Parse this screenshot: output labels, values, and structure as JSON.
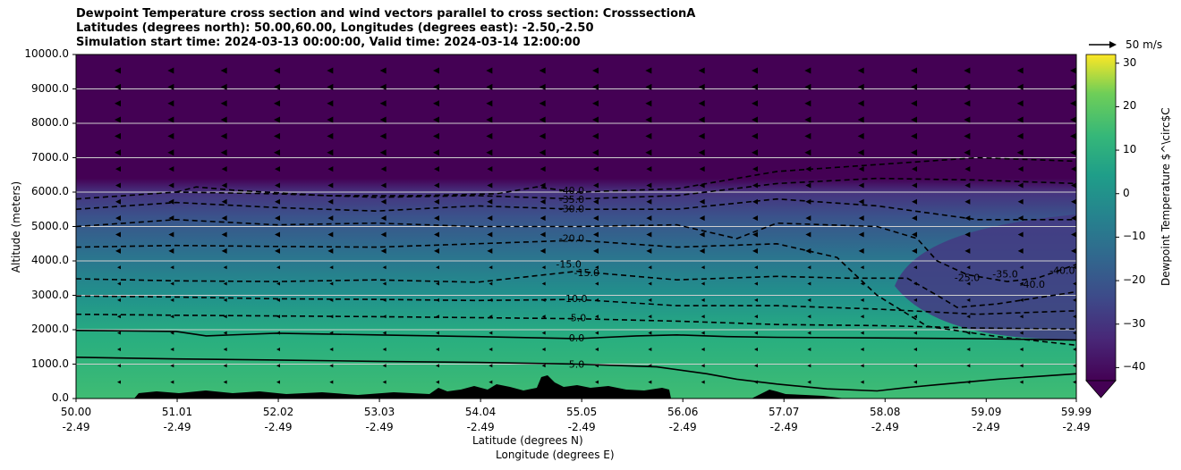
{
  "chart_data": {
    "type": "contour",
    "title": [
      "Dewpoint Temperature cross section and wind vectors parallel to cross section: CrosssectionA",
      "Latitudes (degrees north): 50.00,60.00, Longitudes (degrees east): -2.50,-2.50",
      "Simulation start time: 2024-03-13 00:00:00, Valid time: 2024-03-14 12:00:00"
    ],
    "ylabel": "Altitude (meters)",
    "xlabel": "Latitude (degrees N)",
    "xlabel2": "Longitude (degrees E)",
    "ylim": [
      0,
      10000
    ],
    "yticks": [
      "0.0",
      "1000.0",
      "2000.0",
      "3000.0",
      "4000.0",
      "5000.0",
      "6000.0",
      "7000.0",
      "8000.0",
      "9000.0",
      "10000.0"
    ],
    "xticks": [
      {
        "lat": "50.00",
        "lon": "-2.49"
      },
      {
        "lat": "51.01",
        "lon": "-2.49"
      },
      {
        "lat": "52.02",
        "lon": "-2.49"
      },
      {
        "lat": "53.03",
        "lon": "-2.49"
      },
      {
        "lat": "54.04",
        "lon": "-2.49"
      },
      {
        "lat": "55.05",
        "lon": "-2.49"
      },
      {
        "lat": "56.06",
        "lon": "-2.49"
      },
      {
        "lat": "57.07",
        "lon": "-2.49"
      },
      {
        "lat": "58.08",
        "lon": "-2.49"
      },
      {
        "lat": "59.09",
        "lon": "-2.49"
      },
      {
        "lat": "59.99",
        "lon": "-2.49"
      }
    ],
    "grid": "horizontal",
    "colorbar": {
      "label": "Dewpoint Temperature $^\\circ$C",
      "ticks": [
        "30",
        "20",
        "10",
        "0",
        "−10",
        "−20",
        "−30",
        "−40"
      ],
      "range": [
        -43,
        32
      ],
      "colormap": "viridis",
      "extend": "min"
    },
    "wind_key": "50 m/s",
    "contour_labels": [
      {
        "text": "-40.0",
        "x": 54.95,
        "y": 6020
      },
      {
        "text": "-35.0",
        "x": 54.95,
        "y": 5770
      },
      {
        "text": "-30.0",
        "x": 54.95,
        "y": 5490
      },
      {
        "text": "-20.0",
        "x": 54.95,
        "y": 4630
      },
      {
        "text": "-15.0",
        "x": 54.92,
        "y": 3880
      },
      {
        "text": "-15.0",
        "x": 55.1,
        "y": 3640
      },
      {
        "text": "-10.0",
        "x": 54.98,
        "y": 2880
      },
      {
        "text": "-5.0",
        "x": 55.0,
        "y": 2320
      },
      {
        "text": "0.0",
        "x": 55.0,
        "y": 1740
      },
      {
        "text": "5.0",
        "x": 55.0,
        "y": 970
      },
      {
        "text": "-25.0",
        "x": 58.9,
        "y": 3500
      },
      {
        "text": "-35.0",
        "x": 59.28,
        "y": 3600
      },
      {
        "text": "-40.0",
        "x": 59.55,
        "y": 3300
      },
      {
        "text": "-40.0",
        "x": 59.85,
        "y": 3700
      }
    ],
    "contour_lines": [
      {
        "level": "5.0",
        "points": [
          [
            50,
            1200
          ],
          [
            51,
            1150
          ],
          [
            52,
            1120
          ],
          [
            53,
            1080
          ],
          [
            54,
            1050
          ],
          [
            55,
            1000
          ],
          [
            55.8,
            920
          ],
          [
            56.3,
            720
          ],
          [
            56.6,
            560
          ],
          [
            57.0,
            420
          ],
          [
            57.5,
            280
          ],
          [
            58.0,
            220
          ],
          [
            58.3,
            320
          ],
          [
            58.6,
            400
          ],
          [
            59.2,
            560
          ],
          [
            59.99,
            720
          ]
        ]
      },
      {
        "level": "0.0",
        "points": [
          [
            50,
            1980
          ],
          [
            51,
            1950
          ],
          [
            51.3,
            1820
          ],
          [
            52,
            1900
          ],
          [
            53,
            1850
          ],
          [
            54,
            1800
          ],
          [
            55,
            1740
          ],
          [
            55.6,
            1820
          ],
          [
            56.0,
            1850
          ],
          [
            56.5,
            1800
          ],
          [
            57.0,
            1780
          ],
          [
            58.0,
            1760
          ],
          [
            59.0,
            1740
          ],
          [
            59.99,
            1700
          ]
        ]
      },
      {
        "level": "-5.0",
        "points": [
          [
            50,
            2450
          ],
          [
            51,
            2420
          ],
          [
            52,
            2400
          ],
          [
            53,
            2380
          ],
          [
            54,
            2350
          ],
          [
            55,
            2320
          ],
          [
            56,
            2250
          ],
          [
            57,
            2150
          ],
          [
            58,
            2120
          ],
          [
            59,
            2050
          ],
          [
            59.99,
            2020
          ]
        ]
      },
      {
        "level": "-10.0",
        "points": [
          [
            50,
            2980
          ],
          [
            51,
            2950
          ],
          [
            52,
            2900
          ],
          [
            53,
            2880
          ],
          [
            54,
            2850
          ],
          [
            55,
            2880
          ],
          [
            56,
            2700
          ],
          [
            57,
            2700
          ],
          [
            58,
            2600
          ],
          [
            59,
            2450
          ],
          [
            59.99,
            2550
          ]
        ]
      },
      {
        "level": "-15.0",
        "points": [
          [
            50,
            3480
          ],
          [
            51,
            3420
          ],
          [
            52,
            3400
          ],
          [
            53,
            3450
          ],
          [
            54,
            3380
          ],
          [
            55,
            3700
          ],
          [
            56,
            3450
          ],
          [
            57,
            3550
          ],
          [
            57.7,
            3500
          ],
          [
            58.3,
            3500
          ],
          [
            58.6,
            3000
          ],
          [
            58.8,
            2650
          ],
          [
            59.2,
            2750
          ],
          [
            59.99,
            3100
          ]
        ]
      },
      {
        "level": "-20.0",
        "points": [
          [
            50,
            4400
          ],
          [
            51,
            4450
          ],
          [
            52,
            4420
          ],
          [
            53,
            4400
          ],
          [
            54,
            4500
          ],
          [
            55,
            4600
          ],
          [
            56,
            4400
          ],
          [
            57,
            4500
          ],
          [
            57.6,
            4100
          ],
          [
            58,
            3000
          ],
          [
            58.5,
            2100
          ],
          [
            59.2,
            1800
          ],
          [
            59.99,
            1550
          ]
        ]
      },
      {
        "level": "-25.0",
        "points": [
          [
            50,
            5000
          ],
          [
            51,
            5200
          ],
          [
            52,
            5050
          ],
          [
            53,
            5100
          ],
          [
            54,
            5000
          ],
          [
            55,
            5000
          ],
          [
            56,
            5050
          ],
          [
            56.6,
            4650
          ],
          [
            57,
            5100
          ],
          [
            58,
            5000
          ],
          [
            58.4,
            4650
          ],
          [
            58.6,
            4000
          ],
          [
            58.9,
            3600
          ],
          [
            59.3,
            3400
          ],
          [
            59.6,
            3500
          ],
          [
            59.99,
            3900
          ]
        ]
      },
      {
        "level": "-30.0",
        "points": [
          [
            50,
            5500
          ],
          [
            51,
            5700
          ],
          [
            52,
            5550
          ],
          [
            53,
            5450
          ],
          [
            54,
            5600
          ],
          [
            55,
            5500
          ],
          [
            56,
            5500
          ],
          [
            57,
            5800
          ],
          [
            58,
            5600
          ],
          [
            59,
            5200
          ],
          [
            59.99,
            5200
          ]
        ]
      },
      {
        "level": "-35.0",
        "points": [
          [
            50,
            5800
          ],
          [
            51,
            6000
          ],
          [
            52,
            5950
          ],
          [
            53,
            5850
          ],
          [
            54,
            5900
          ],
          [
            55,
            5800
          ],
          [
            56,
            5900
          ],
          [
            57,
            6250
          ],
          [
            58,
            6400
          ],
          [
            59,
            6350
          ],
          [
            59.99,
            6250
          ]
        ]
      },
      {
        "level": "-40.0",
        "points": [
          [
            51.0,
            6000
          ],
          [
            51.2,
            6150
          ],
          [
            51.6,
            6050
          ],
          [
            52.5,
            5900
          ],
          [
            53.4,
            5900
          ],
          [
            54.2,
            5950
          ],
          [
            54.6,
            6150
          ],
          [
            55.0,
            6000
          ],
          [
            56.0,
            6100
          ],
          [
            57.0,
            6600
          ],
          [
            58,
            6800
          ],
          [
            59,
            7000
          ],
          [
            59.99,
            6900
          ]
        ]
      }
    ]
  }
}
